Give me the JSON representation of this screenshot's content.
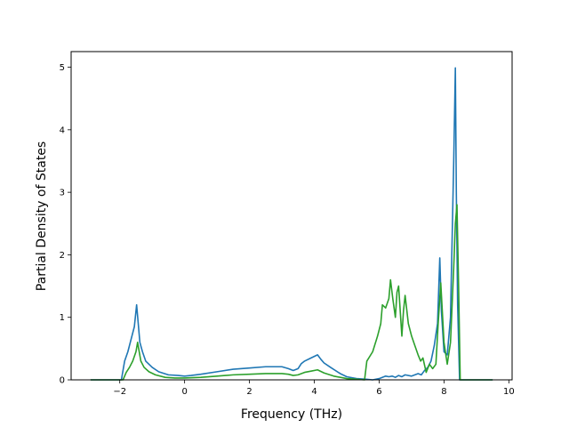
{
  "chart_data": {
    "type": "line",
    "title": "",
    "xlabel": "Frequency (THz)",
    "ylabel": "Partial Density of States",
    "xlim": [
      -3.5,
      10.1
    ],
    "ylim": [
      0,
      5.25
    ],
    "xticks": [
      -2,
      0,
      2,
      4,
      6,
      8,
      10
    ],
    "xtick_labels": [
      "−2",
      "0",
      "2",
      "4",
      "6",
      "8",
      "10"
    ],
    "yticks": [
      0,
      1,
      2,
      3,
      4,
      5
    ],
    "ytick_labels": [
      "0",
      "1",
      "2",
      "3",
      "4",
      "5"
    ],
    "grid": false,
    "legend": "none",
    "series": [
      {
        "color": "#1f77b4",
        "x": [
          -2.9,
          -2.2,
          -1.95,
          -1.85,
          -1.75,
          -1.65,
          -1.55,
          -1.48,
          -1.43,
          -1.38,
          -1.3,
          -1.2,
          -1.0,
          -0.8,
          -0.5,
          -0.2,
          0.0,
          0.2,
          0.5,
          1.0,
          1.5,
          2.0,
          2.5,
          3.0,
          3.2,
          3.35,
          3.5,
          3.6,
          3.7,
          3.9,
          4.1,
          4.2,
          4.3,
          4.5,
          4.8,
          5.0,
          5.3,
          5.6,
          5.8,
          6.0,
          6.2,
          6.3,
          6.4,
          6.5,
          6.6,
          6.7,
          6.8,
          7.0,
          7.2,
          7.3,
          7.4,
          7.5,
          7.6,
          7.7,
          7.8,
          7.87,
          7.92,
          8.0,
          8.1,
          8.2,
          8.3,
          8.35,
          8.38,
          8.42,
          8.48,
          9.5
        ],
        "y": [
          0.0,
          0.0,
          0.0,
          0.3,
          0.45,
          0.65,
          0.85,
          1.2,
          0.9,
          0.6,
          0.45,
          0.3,
          0.2,
          0.13,
          0.08,
          0.07,
          0.06,
          0.07,
          0.09,
          0.13,
          0.17,
          0.19,
          0.21,
          0.21,
          0.18,
          0.15,
          0.18,
          0.26,
          0.3,
          0.35,
          0.4,
          0.33,
          0.27,
          0.2,
          0.1,
          0.05,
          0.02,
          0.01,
          0.0,
          0.02,
          0.06,
          0.05,
          0.06,
          0.04,
          0.07,
          0.05,
          0.08,
          0.06,
          0.1,
          0.08,
          0.15,
          0.2,
          0.3,
          0.55,
          0.9,
          1.95,
          1.1,
          0.45,
          0.4,
          1.0,
          3.5,
          4.99,
          3.0,
          1.2,
          0.0,
          0.0
        ]
      },
      {
        "color": "#2ca02c",
        "x": [
          -2.9,
          -2.2,
          -1.9,
          -1.8,
          -1.7,
          -1.6,
          -1.5,
          -1.45,
          -1.4,
          -1.35,
          -1.25,
          -1.1,
          -0.9,
          -0.6,
          -0.3,
          0.0,
          0.5,
          1.0,
          1.5,
          2.0,
          2.5,
          3.0,
          3.2,
          3.35,
          3.5,
          3.7,
          3.9,
          4.1,
          4.3,
          4.6,
          5.0,
          5.3,
          5.55,
          5.62,
          5.8,
          5.95,
          6.05,
          6.1,
          6.2,
          6.3,
          6.35,
          6.42,
          6.5,
          6.55,
          6.6,
          6.7,
          6.75,
          6.8,
          6.9,
          7.0,
          7.1,
          7.2,
          7.28,
          7.35,
          7.45,
          7.55,
          7.65,
          7.75,
          7.82,
          7.9,
          8.0,
          8.1,
          8.2,
          8.3,
          8.35,
          8.4,
          8.45,
          8.5,
          9.5
        ],
        "y": [
          0.0,
          0.0,
          0.0,
          0.12,
          0.2,
          0.3,
          0.45,
          0.6,
          0.45,
          0.3,
          0.2,
          0.13,
          0.08,
          0.04,
          0.03,
          0.03,
          0.04,
          0.06,
          0.08,
          0.09,
          0.1,
          0.1,
          0.09,
          0.07,
          0.08,
          0.12,
          0.14,
          0.16,
          0.11,
          0.06,
          0.02,
          0.01,
          0.0,
          0.3,
          0.45,
          0.7,
          0.9,
          1.2,
          1.15,
          1.3,
          1.6,
          1.3,
          1.0,
          1.4,
          1.5,
          0.7,
          1.1,
          1.35,
          0.9,
          0.7,
          0.55,
          0.4,
          0.3,
          0.35,
          0.12,
          0.25,
          0.18,
          0.25,
          0.9,
          1.55,
          0.6,
          0.25,
          0.6,
          1.8,
          2.5,
          2.8,
          1.5,
          0.0,
          0.0
        ]
      }
    ]
  }
}
